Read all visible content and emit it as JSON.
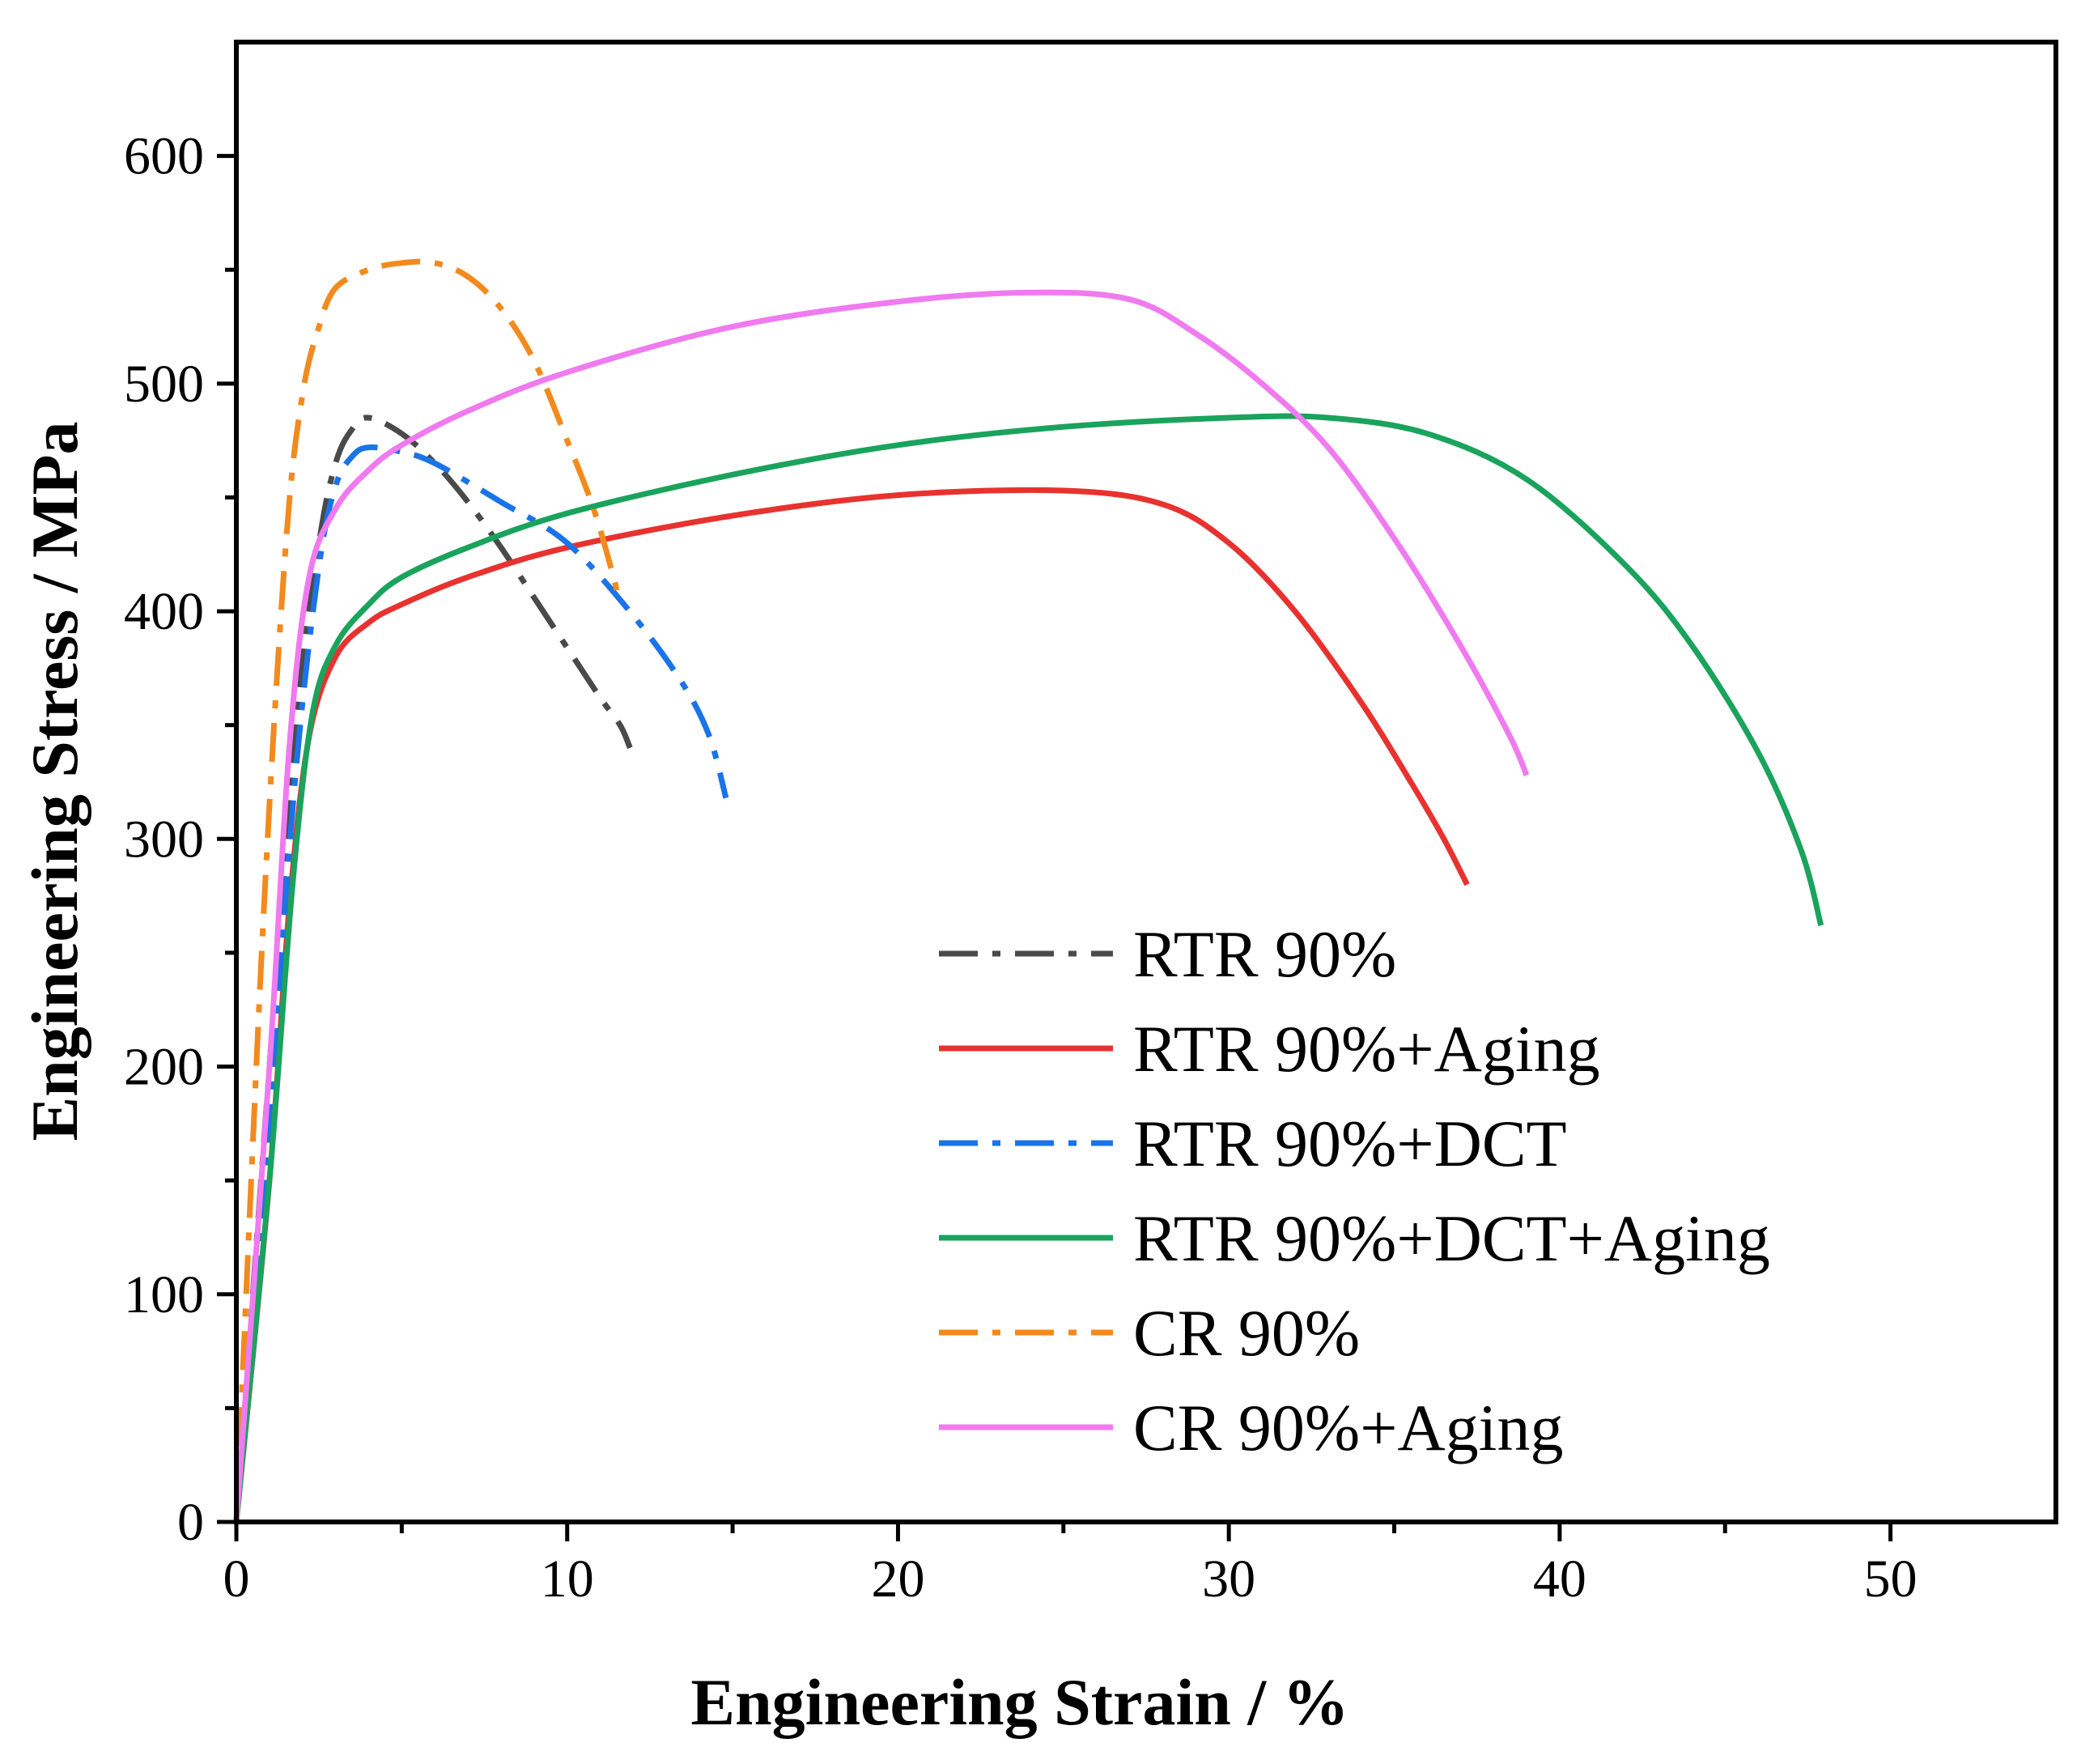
{
  "chart_data": {
    "type": "line",
    "title": "",
    "xlabel": "Engineering Strain / %",
    "ylabel": "Engineering Stress / MPa",
    "xlim": [
      0,
      55
    ],
    "ylim": [
      0,
      650
    ],
    "x_ticks": [
      0,
      10,
      20,
      30,
      40,
      50
    ],
    "y_ticks": [
      0,
      100,
      200,
      300,
      400,
      500,
      600
    ],
    "x_minor_ticks": [
      5,
      15,
      25,
      35,
      45
    ],
    "y_minor_ticks": [
      50,
      150,
      250,
      350,
      450,
      550
    ],
    "grid": false,
    "legend_position": "bottom-right",
    "series": [
      {
        "name": "RTR 90%",
        "color": "#4a4a4a",
        "dash": "dashdot",
        "x": [
          0,
          1,
          1.8,
          2.5,
          3,
          3.5,
          4,
          5,
          6,
          7,
          8,
          9,
          10,
          11,
          11.6,
          11.9
        ],
        "y": [
          0,
          200,
          350,
          430,
          465,
          480,
          485,
          478,
          465,
          448,
          428,
          406,
          384,
          362,
          350,
          340
        ]
      },
      {
        "name": "RTR 90%+Aging",
        "color": "#e8322f",
        "dash": "solid",
        "x": [
          0,
          1,
          1.6,
          2.2,
          3,
          4,
          5,
          7,
          10,
          15,
          20,
          25,
          28,
          30,
          32,
          34,
          35.5,
          36.5,
          37.2
        ],
        "y": [
          0,
          150,
          270,
          345,
          380,
          395,
          403,
          415,
          428,
          442,
          451,
          453,
          447,
          430,
          400,
          360,
          325,
          300,
          280
        ]
      },
      {
        "name": "RTR 90%+DCT",
        "color": "#1a73e8",
        "dash": "dashdot",
        "x": [
          0,
          1,
          1.8,
          2.5,
          3,
          3.5,
          4,
          5,
          6,
          8,
          10,
          12,
          13.5,
          14.3,
          14.8
        ],
        "y": [
          0,
          180,
          330,
          420,
          455,
          468,
          472,
          470,
          465,
          448,
          430,
          398,
          368,
          345,
          318
        ]
      },
      {
        "name": "RTR 90%+DCT+Aging",
        "color": "#1aa35c",
        "dash": "solid",
        "x": [
          0,
          1,
          1.7,
          2.3,
          3,
          4,
          5,
          7,
          10,
          15,
          20,
          25,
          30,
          33,
          36,
          39,
          42,
          44,
          46,
          47.3,
          47.9
        ],
        "y": [
          0,
          150,
          280,
          355,
          385,
          403,
          415,
          428,
          443,
          460,
          473,
          481,
          485,
          485,
          478,
          458,
          420,
          385,
          338,
          295,
          262
        ]
      },
      {
        "name": "CR 90%",
        "color": "#f28a1e",
        "dash": "dashdot",
        "x": [
          0,
          0.8,
          1.5,
          2,
          2.5,
          3,
          4,
          5,
          6,
          7,
          8,
          9,
          10,
          10.8,
          11.4,
          11.5
        ],
        "y": [
          0,
          260,
          430,
          495,
          525,
          542,
          550,
          553,
          553,
          547,
          533,
          510,
          475,
          445,
          415,
          408
        ]
      },
      {
        "name": "CR 90%+Aging",
        "color": "#f07af0",
        "dash": "solid",
        "x": [
          0,
          1,
          1.6,
          2.2,
          3,
          4,
          5,
          7,
          10,
          15,
          20,
          24,
          27,
          29,
          31,
          33,
          35,
          37,
          38.5,
          39
        ],
        "y": [
          0,
          200,
          340,
          415,
          445,
          462,
          473,
          488,
          505,
          525,
          536,
          540,
          537,
          522,
          500,
          472,
          432,
          385,
          345,
          328
        ]
      }
    ]
  }
}
